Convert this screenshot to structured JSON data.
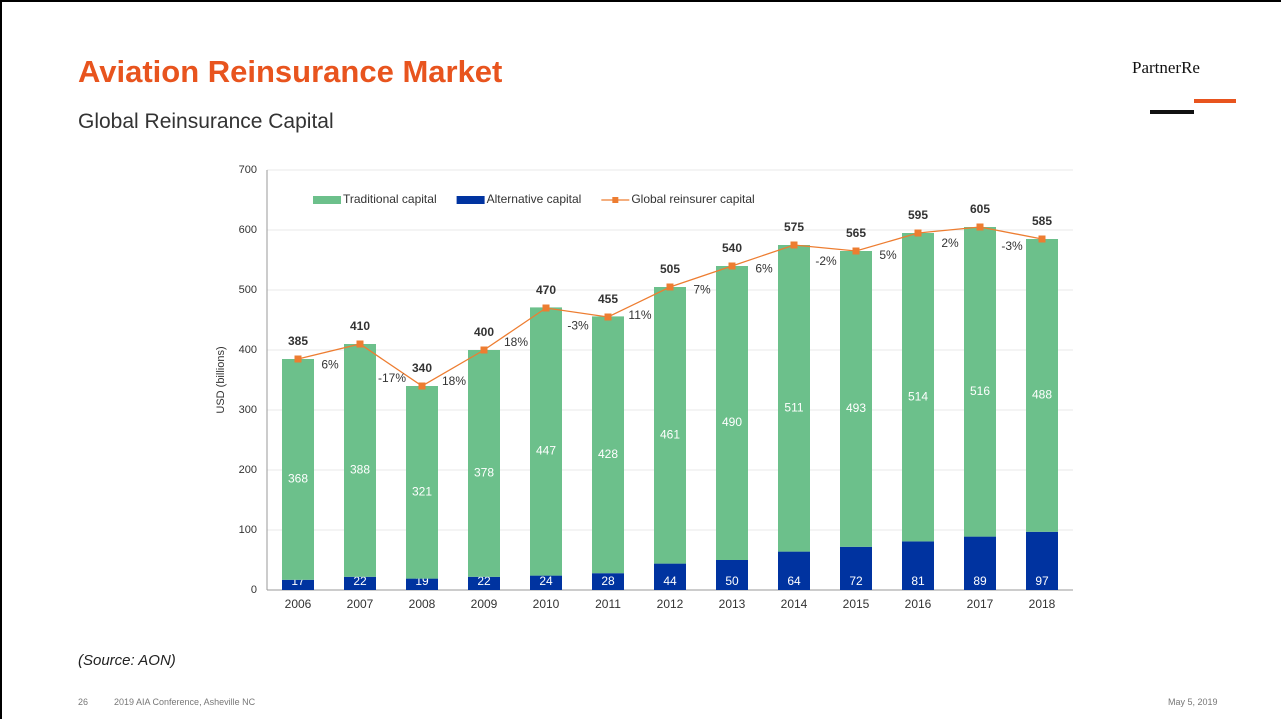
{
  "title": "Aviation Reinsurance Market",
  "subtitle": "Global Reinsurance Capital",
  "logo": "PartnerRe",
  "source": "(Source: AON)",
  "footer": {
    "page": "26",
    "event": "2019 AIA Conference, Asheville NC",
    "date": "May 5, 2019"
  },
  "chart_data": {
    "type": "bar",
    "stacked": true,
    "y_label": "USD (billions)",
    "categories": [
      "2006",
      "2007",
      "2008",
      "2009",
      "2010",
      "2011",
      "2012",
      "2013",
      "2014",
      "2015",
      "2016",
      "2017",
      "2018"
    ],
    "series": [
      {
        "name": "Traditional capital",
        "color": "#6cc08b",
        "type": "bar",
        "values": [
          368,
          388,
          321,
          378,
          447,
          428,
          461,
          490,
          511,
          493,
          514,
          516,
          488
        ]
      },
      {
        "name": "Alternative capital",
        "color": "#0033a0",
        "type": "bar",
        "values": [
          17,
          22,
          19,
          22,
          24,
          28,
          44,
          50,
          64,
          72,
          81,
          89,
          97
        ]
      },
      {
        "name": "Global reinsurer capital",
        "color": "#ed7d31",
        "type": "line",
        "values": [
          385,
          410,
          340,
          400,
          470,
          455,
          505,
          540,
          575,
          565,
          595,
          605,
          585
        ]
      }
    ],
    "growth_labels": [
      "6%",
      "-17%",
      "18%",
      "18%",
      "-3%",
      "11%",
      "7%",
      "6%",
      "-2%",
      "5%",
      "2%",
      "-3%"
    ],
    "ylim": [
      0,
      700
    ],
    "yticks": [
      0,
      100,
      200,
      300,
      400,
      500,
      600,
      700
    ],
    "grid": true,
    "legend": "top"
  }
}
